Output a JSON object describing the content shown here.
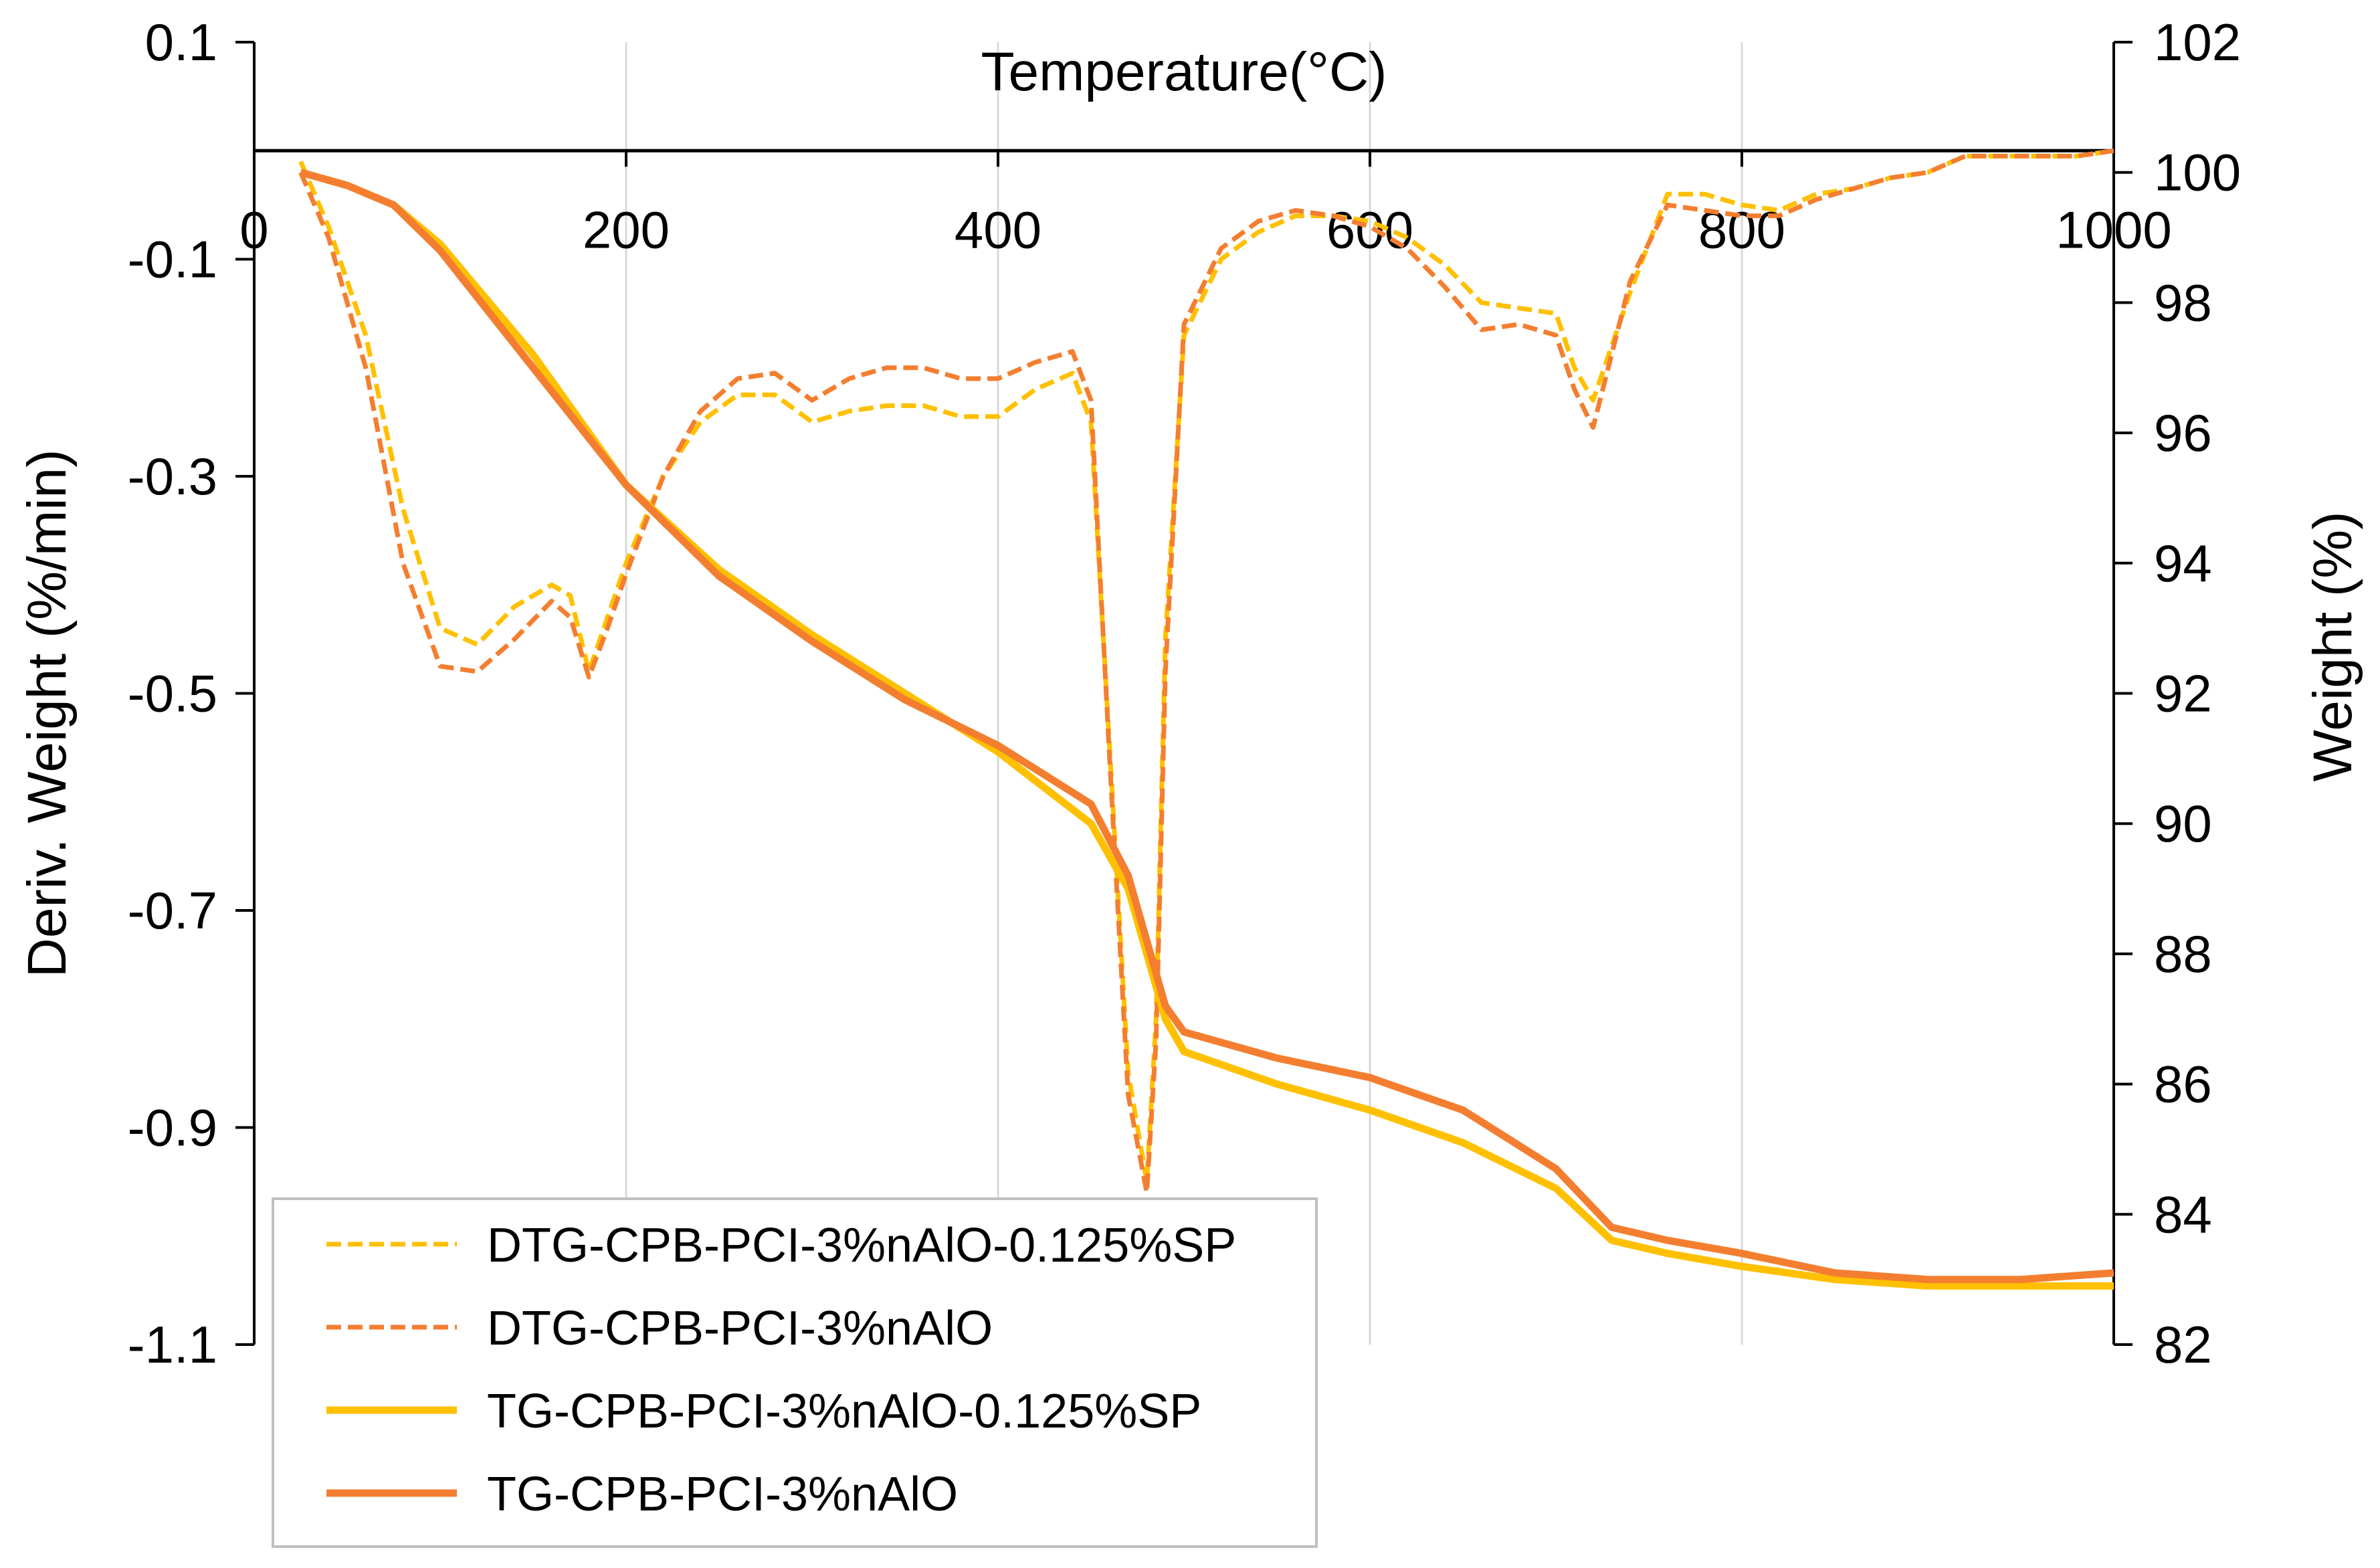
{
  "chart_data": {
    "type": "line",
    "x_axis": {
      "title": "Temperature(°C)",
      "range": [
        0,
        1000
      ],
      "ticks": [
        0,
        200,
        400,
        600,
        800,
        1000
      ],
      "tick_labels": [
        "0",
        "200",
        "400",
        "600",
        "800",
        "1000"
      ],
      "position": "top-inside, crossing left axis at 0"
    },
    "y_left": {
      "title": "Deriv. Weight (%/min)",
      "range": [
        -1.1,
        0.1
      ],
      "ticks": [
        0.1,
        -0.1,
        -0.3,
        -0.5,
        -0.7,
        -0.9,
        -1.1
      ],
      "tick_labels": [
        "0.1",
        "-0.1",
        "-0.3",
        "-0.5",
        "-0.7",
        "-0.9",
        "-1.1"
      ]
    },
    "y_right": {
      "title": "Weight (%)",
      "range": [
        82,
        102
      ],
      "ticks": [
        102,
        100,
        98,
        96,
        94,
        92,
        90,
        88,
        86,
        84,
        82
      ],
      "tick_labels": [
        "102",
        "100",
        "98",
        "96",
        "94",
        "92",
        "90",
        "88",
        "86",
        "84",
        "82"
      ]
    },
    "gridlines": "vertical",
    "legend_position": "bottom-left",
    "series": [
      {
        "name": "DTG-CPB-PCI-3%nAlO-0.125%SP",
        "axis": "left",
        "color": "#FFC000",
        "dash": "dashed",
        "x": [
          25,
          40,
          60,
          80,
          100,
          120,
          140,
          160,
          170,
          180,
          190,
          200,
          220,
          240,
          260,
          280,
          300,
          320,
          340,
          360,
          380,
          400,
          420,
          440,
          450,
          460,
          470,
          480,
          485,
          490,
          500,
          520,
          540,
          560,
          580,
          600,
          620,
          640,
          660,
          680,
          700,
          710,
          720,
          740,
          760,
          780,
          800,
          820,
          840,
          860,
          880,
          900,
          920,
          940,
          960,
          980,
          1000
        ],
        "y": [
          -0.01,
          -0.07,
          -0.17,
          -0.33,
          -0.44,
          -0.455,
          -0.42,
          -0.4,
          -0.41,
          -0.48,
          -0.43,
          -0.38,
          -0.3,
          -0.25,
          -0.225,
          -0.225,
          -0.25,
          -0.24,
          -0.235,
          -0.235,
          -0.245,
          -0.245,
          -0.22,
          -0.205,
          -0.25,
          -0.55,
          -0.85,
          -0.95,
          -0.8,
          -0.45,
          -0.17,
          -0.1,
          -0.075,
          -0.06,
          -0.06,
          -0.065,
          -0.08,
          -0.105,
          -0.14,
          -0.145,
          -0.15,
          -0.2,
          -0.23,
          -0.13,
          -0.04,
          -0.04,
          -0.05,
          -0.055,
          -0.04,
          -0.035,
          -0.025,
          -0.02,
          -0.005,
          -0.005,
          -0.005,
          -0.005,
          0.0
        ]
      },
      {
        "name": "DTG-CPB-PCI-3%nAlO",
        "axis": "left",
        "color": "#F47E30",
        "dash": "dashed",
        "x": [
          25,
          40,
          60,
          80,
          100,
          120,
          140,
          160,
          170,
          180,
          190,
          200,
          220,
          240,
          260,
          280,
          300,
          320,
          340,
          360,
          380,
          400,
          420,
          440,
          450,
          460,
          470,
          480,
          485,
          490,
          500,
          520,
          540,
          560,
          580,
          600,
          620,
          640,
          660,
          680,
          700,
          710,
          720,
          740,
          760,
          780,
          800,
          820,
          840,
          860,
          880,
          900,
          920,
          940,
          960,
          980,
          1000
        ],
        "y": [
          -0.02,
          -0.08,
          -0.2,
          -0.38,
          -0.475,
          -0.48,
          -0.45,
          -0.415,
          -0.43,
          -0.485,
          -0.44,
          -0.39,
          -0.3,
          -0.24,
          -0.21,
          -0.205,
          -0.23,
          -0.21,
          -0.2,
          -0.2,
          -0.21,
          -0.21,
          -0.195,
          -0.185,
          -0.23,
          -0.56,
          -0.87,
          -0.96,
          -0.82,
          -0.48,
          -0.16,
          -0.09,
          -0.065,
          -0.055,
          -0.06,
          -0.07,
          -0.09,
          -0.125,
          -0.165,
          -0.16,
          -0.17,
          -0.22,
          -0.255,
          -0.12,
          -0.05,
          -0.055,
          -0.06,
          -0.06,
          -0.045,
          -0.035,
          -0.025,
          -0.02,
          -0.005,
          -0.005,
          -0.005,
          -0.005,
          0.0
        ]
      },
      {
        "name": "TG-CPB-PCI-3%nAlO-0.125%SP",
        "axis": "right",
        "color": "#FFC000",
        "dash": "solid",
        "x": [
          25,
          50,
          75,
          100,
          150,
          200,
          250,
          300,
          350,
          400,
          450,
          470,
          490,
          500,
          550,
          600,
          650,
          700,
          730,
          760,
          800,
          850,
          900,
          950,
          1000
        ],
        "y": [
          100.0,
          99.8,
          99.5,
          98.9,
          97.2,
          95.2,
          93.9,
          92.9,
          92.0,
          91.1,
          90.0,
          89.0,
          87.0,
          86.5,
          86.0,
          85.6,
          85.1,
          84.4,
          83.6,
          83.4,
          83.2,
          83.0,
          82.9,
          82.9,
          82.9
        ]
      },
      {
        "name": "TG-CPB-PCI-3%nAlO",
        "axis": "right",
        "color": "#F47E30",
        "dash": "solid",
        "x": [
          25,
          50,
          75,
          100,
          150,
          200,
          250,
          300,
          350,
          400,
          450,
          470,
          490,
          500,
          550,
          600,
          650,
          700,
          730,
          760,
          800,
          850,
          900,
          950,
          1000
        ],
        "y": [
          100.0,
          99.8,
          99.5,
          98.8,
          97.0,
          95.2,
          93.8,
          92.8,
          91.9,
          91.2,
          90.3,
          89.2,
          87.2,
          86.8,
          86.4,
          86.1,
          85.6,
          84.7,
          83.8,
          83.6,
          83.4,
          83.1,
          83.0,
          83.0,
          83.1
        ]
      }
    ]
  }
}
